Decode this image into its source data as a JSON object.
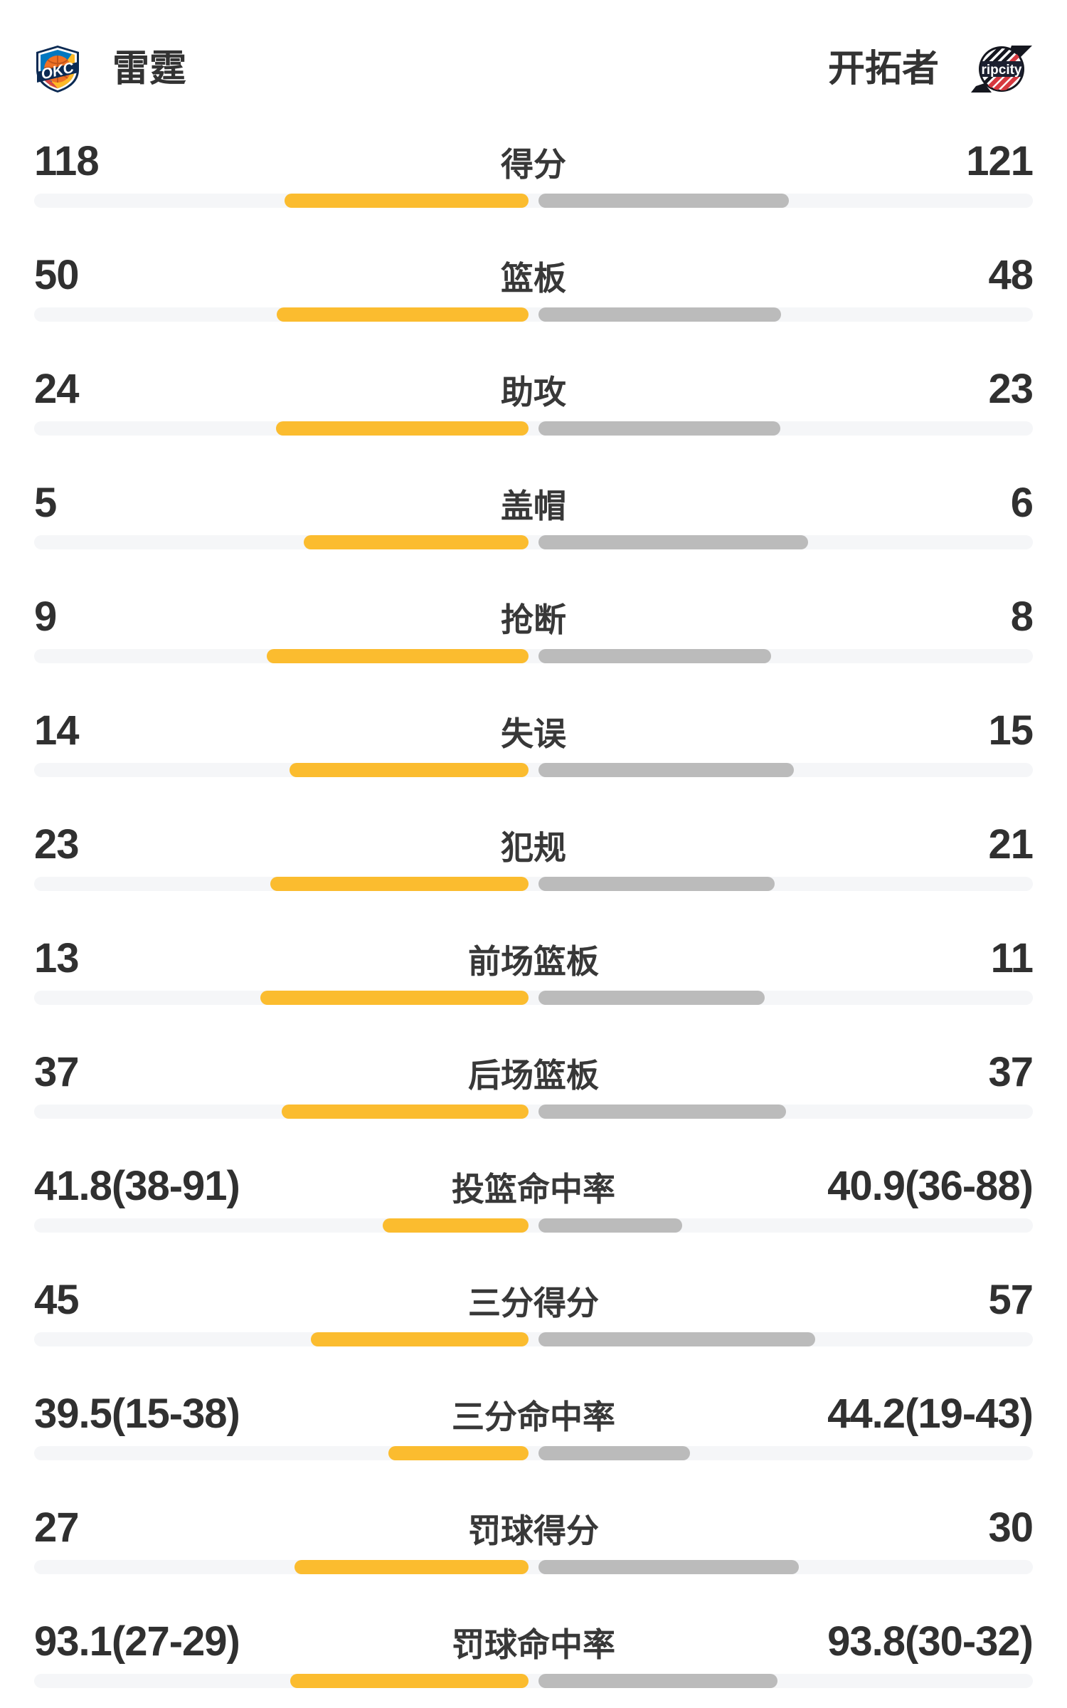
{
  "header": {
    "home_team": {
      "name": "雷霆",
      "logo": "okc-thunder-shield"
    },
    "away_team": {
      "name": "开拓者",
      "logo": "blazers-ripcity-badge"
    }
  },
  "colors": {
    "home_bar": "#FBBC2F",
    "away_bar": "#BBBBBB",
    "track": "#F5F6F8",
    "value_text": "#303030",
    "label_text": "#383838"
  },
  "chart_data": {
    "type": "bar",
    "orientation": "horizontal-paired-from-center",
    "categories": [
      "得分",
      "篮板",
      "助攻",
      "盖帽",
      "抢断",
      "失误",
      "犯规",
      "前场篮板",
      "后场篮板",
      "投篮命中率",
      "三分得分",
      "三分命中率",
      "罚球得分",
      "罚球命中率"
    ],
    "series": [
      {
        "name": "雷霆",
        "color": "#FBBC2F",
        "values": [
          118,
          50,
          24,
          5,
          9,
          14,
          23,
          13,
          37,
          41.8,
          45,
          39.5,
          27,
          93.1
        ],
        "display": [
          "118",
          "50",
          "24",
          "5",
          "9",
          "14",
          "23",
          "13",
          "37",
          "41.8(38-91)",
          "45",
          "39.5(15-38)",
          "27",
          "93.1(27-29)"
        ]
      },
      {
        "name": "开拓者",
        "color": "#BBBBBB",
        "values": [
          121,
          48,
          23,
          6,
          8,
          15,
          21,
          11,
          37,
          40.9,
          57,
          44.2,
          30,
          93.8
        ],
        "display": [
          "121",
          "48",
          "23",
          "6",
          "8",
          "15",
          "21",
          "11",
          "37",
          "40.9(36-88)",
          "57",
          "44.2(19-43)",
          "30",
          "93.8(30-32)"
        ]
      }
    ],
    "legend_position": "header",
    "grid": false,
    "note": "bar length = value share of pair for counts; value/(value+100) for percentages"
  },
  "rows": [
    {
      "label": "得分",
      "left": "118",
      "right": "121",
      "left_pct": 49.4,
      "right_pct": 50.6
    },
    {
      "label": "篮板",
      "left": "50",
      "right": "48",
      "left_pct": 51.0,
      "right_pct": 49.0
    },
    {
      "label": "助攻",
      "left": "24",
      "right": "23",
      "left_pct": 51.1,
      "right_pct": 48.9
    },
    {
      "label": "盖帽",
      "left": "5",
      "right": "6",
      "left_pct": 45.5,
      "right_pct": 54.5
    },
    {
      "label": "抢断",
      "left": "9",
      "right": "8",
      "left_pct": 52.9,
      "right_pct": 47.1
    },
    {
      "label": "失误",
      "left": "14",
      "right": "15",
      "left_pct": 48.3,
      "right_pct": 51.7
    },
    {
      "label": "犯规",
      "left": "23",
      "right": "21",
      "left_pct": 52.3,
      "right_pct": 47.7
    },
    {
      "label": "前场篮板",
      "left": "13",
      "right": "11",
      "left_pct": 54.2,
      "right_pct": 45.8
    },
    {
      "label": "后场篮板",
      "left": "37",
      "right": "37",
      "left_pct": 50.0,
      "right_pct": 50.0
    },
    {
      "label": "投篮命中率",
      "left": "41.8(38-91)",
      "right": "40.9(36-88)",
      "left_pct": 29.5,
      "right_pct": 29.0
    },
    {
      "label": "三分得分",
      "left": "45",
      "right": "57",
      "left_pct": 44.1,
      "right_pct": 55.9
    },
    {
      "label": "三分命中率",
      "left": "39.5(15-38)",
      "right": "44.2(19-43)",
      "left_pct": 28.3,
      "right_pct": 30.7
    },
    {
      "label": "罚球得分",
      "left": "27",
      "right": "30",
      "left_pct": 47.4,
      "right_pct": 52.6
    },
    {
      "label": "罚球命中率",
      "left": "93.1(27-29)",
      "right": "93.8(30-32)",
      "left_pct": 48.2,
      "right_pct": 48.4
    }
  ]
}
